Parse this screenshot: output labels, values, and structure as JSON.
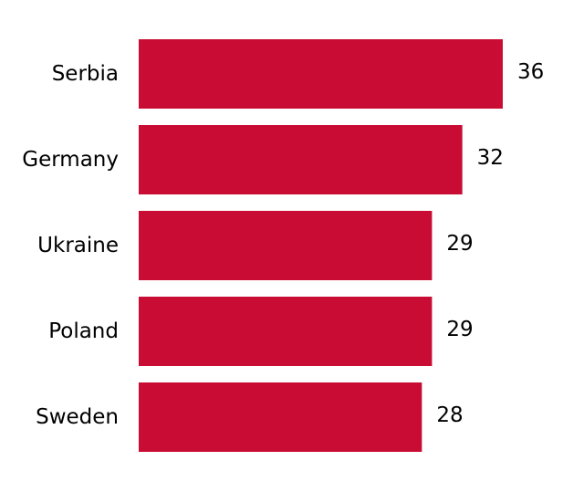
{
  "chart_data": {
    "type": "bar",
    "orientation": "horizontal",
    "categories": [
      "Serbia",
      "Germany",
      "Ukraine",
      "Poland",
      "Sweden"
    ],
    "values": [
      36,
      32,
      29,
      29,
      28
    ],
    "title": "",
    "xlabel": "",
    "ylabel": "",
    "xlim": [
      0,
      36
    ],
    "grid": false,
    "legend": "none",
    "bar_color": "#c80c33",
    "data_labels": true
  }
}
